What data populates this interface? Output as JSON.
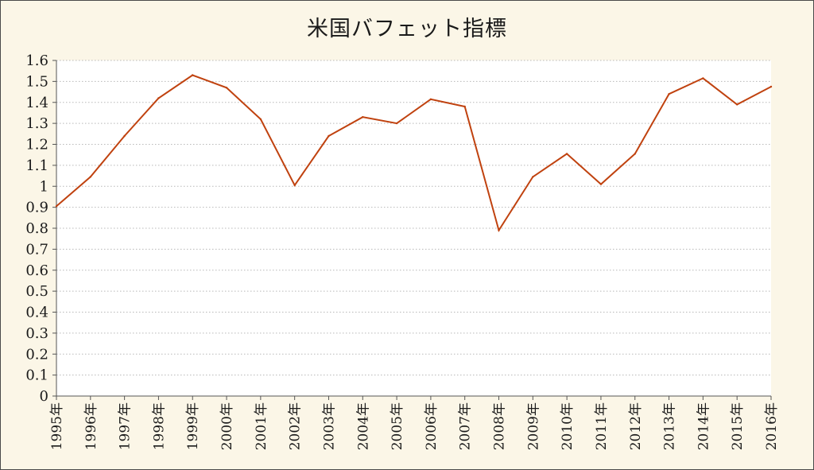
{
  "chart_data": {
    "type": "line",
    "title": "米国バフェット指標",
    "xlabel": "",
    "ylabel": "",
    "categories": [
      "1995年",
      "1996年",
      "1997年",
      "1998年",
      "1999年",
      "2000年",
      "2001年",
      "2002年",
      "2003年",
      "2004年",
      "2005年",
      "2006年",
      "2007年",
      "2008年",
      "2009年",
      "2010年",
      "2011年",
      "2012年",
      "2013年",
      "2014年",
      "2015年",
      "2016年"
    ],
    "series": [
      {
        "values": [
          0.905,
          1.045,
          1.24,
          1.42,
          1.53,
          1.47,
          1.32,
          1.005,
          1.24,
          1.33,
          1.3,
          1.415,
          1.38,
          0.79,
          1.045,
          1.155,
          1.01,
          1.155,
          1.44,
          1.515,
          1.39,
          1.475
        ]
      }
    ],
    "ylim": [
      0,
      1.6
    ],
    "yticks": [
      "0",
      "0.1",
      "0.2",
      "0.3",
      "0.4",
      "0.5",
      "0.6",
      "0.7",
      "0.8",
      "0.9",
      "1",
      "1.1",
      "1.2",
      "1.3",
      "1.4",
      "1.5",
      "1.6"
    ],
    "grid": "horizontal dotted",
    "legend": "none",
    "colors": {
      "line": "#c0420f",
      "plot_background": "#ffffff",
      "chart_background": "#fbf6e7",
      "grid": "#b8b8b8",
      "axis": "#555555"
    }
  }
}
